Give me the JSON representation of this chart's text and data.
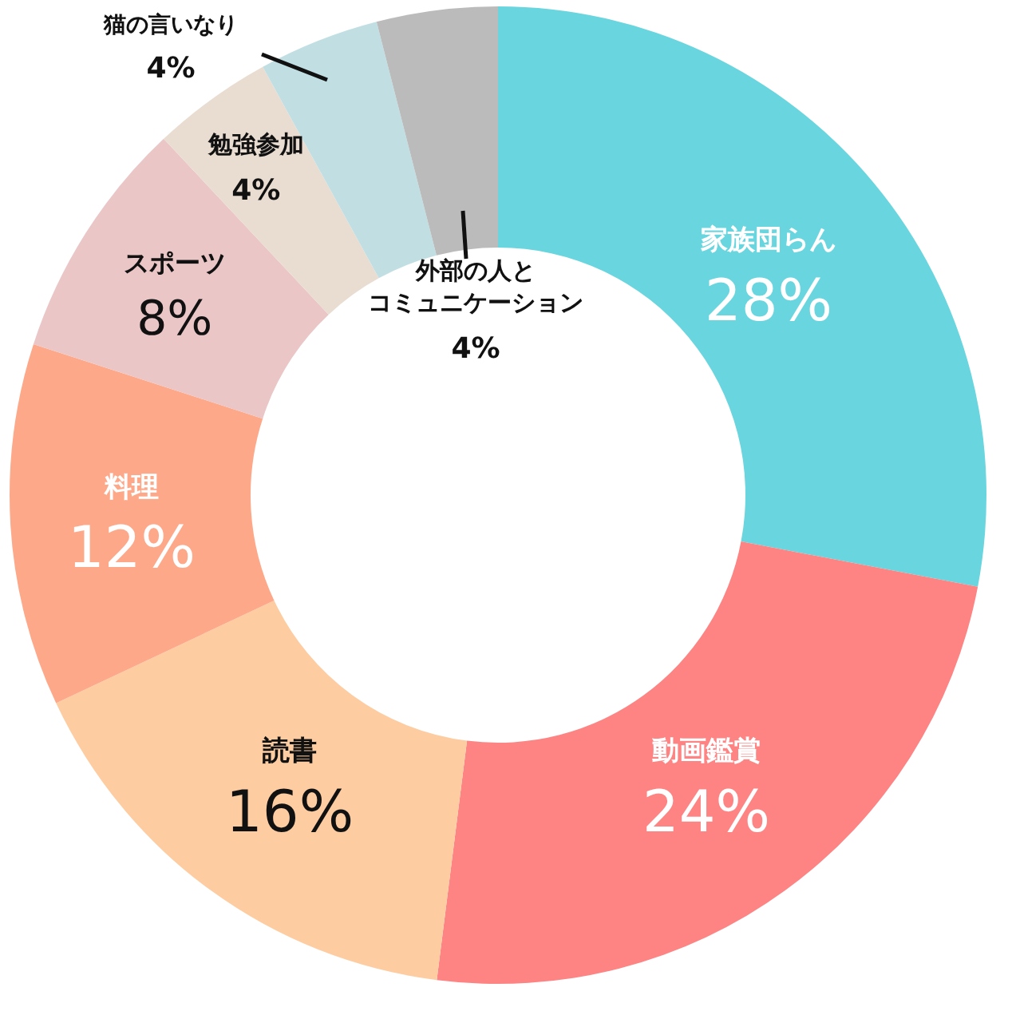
{
  "chart_data": {
    "type": "donut",
    "categories": [
      "家族団らん",
      "動画鑑賞",
      "読書",
      "料理",
      "スポーツ",
      "勉強参加",
      "猫の言いなり",
      "外部の人とコミュニケーション"
    ],
    "values": [
      28,
      24,
      16,
      12,
      8,
      4,
      4,
      4
    ],
    "value_labels": [
      "28%",
      "24%",
      "16%",
      "12%",
      "8%",
      "4%",
      "4%",
      "4%"
    ],
    "colors": [
      "#69d5de",
      "#fe8383",
      "#fecca1",
      "#fea88a",
      "#eac6c6",
      "#e9ddd2",
      "#c1dfe3",
      "#bbbbbb"
    ]
  }
}
